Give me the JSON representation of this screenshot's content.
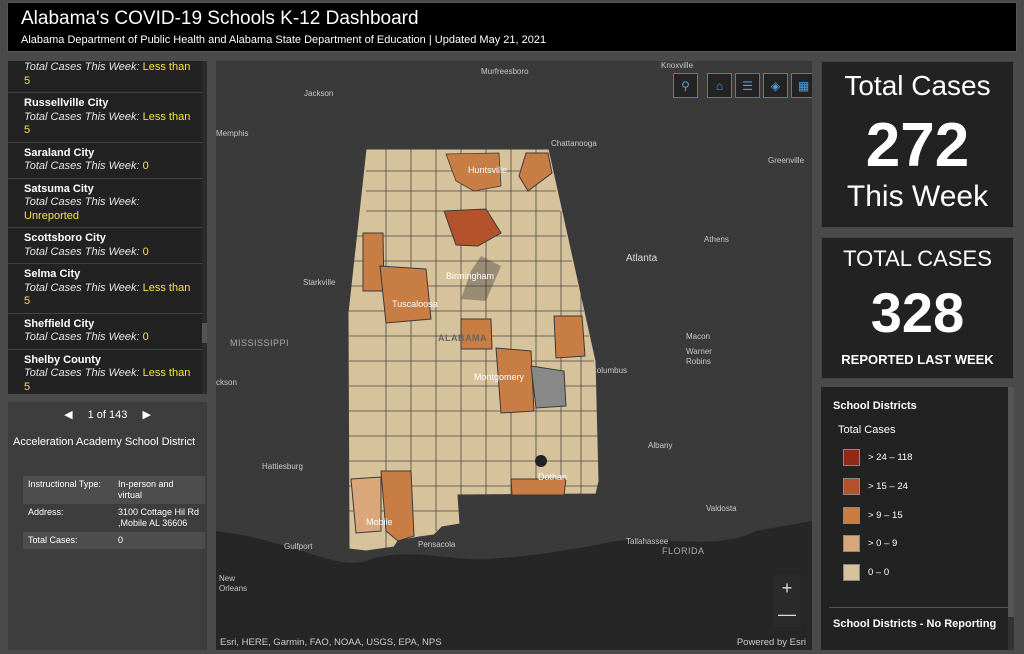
{
  "header": {
    "title": "Alabama's COVID-19 Schools K-12 Dashboard",
    "subtitle": "Alabama Department of Public Health and Alabama State Department of Education | Updated May 21, 2021"
  },
  "list": {
    "label": "Total Cases This Week:",
    "top_partial": {
      "label": "Total Cases This Week:",
      "value": "Less than",
      "value2": "5"
    },
    "items": [
      {
        "name": "Russellville City",
        "value": "Less than",
        "value2": "5"
      },
      {
        "name": "Saraland City",
        "value": "0",
        "value2": ""
      },
      {
        "name": "Satsuma City",
        "value": "Unreported",
        "value2": ""
      },
      {
        "name": "Scottsboro City",
        "value": "0",
        "value2": ""
      },
      {
        "name": "Selma City",
        "value": "Less than",
        "value2": "5"
      },
      {
        "name": "Sheffield City",
        "value": "0",
        "value2": ""
      },
      {
        "name": "Shelby County",
        "value": "Less than",
        "value2": "5"
      }
    ]
  },
  "details": {
    "pager": "1 of 143",
    "prev_icon": "triangle-left-icon",
    "next_icon": "triangle-right-icon",
    "title": "Acceleration Academy School District",
    "rows": [
      {
        "label": "Instructional Type:",
        "value": "In-person and virtual"
      },
      {
        "label": "Address:",
        "value": "3100 Cottage Hil Rd ,Mobile AL 36606"
      },
      {
        "label": "Total Cases:",
        "value": "0"
      }
    ]
  },
  "map": {
    "tools": [
      "search-icon",
      "home-icon",
      "legend-list-icon",
      "layers-icon",
      "qr-grid-icon"
    ],
    "zoom_in": "+",
    "zoom_out": "—",
    "attribution": "Esri, HERE, Garmin, FAO, NOAA, USGS, EPA, NPS",
    "powered": "Powered by Esri",
    "labels": {
      "jackson_n": "Jackson",
      "murfreesboro": "Murfreesboro",
      "knoxville": "Knoxville",
      "memphis": "Memphis",
      "chattanooga": "Chattanooga",
      "greenville": "Greenville",
      "huntsville": "Huntsville",
      "athens": "Athens",
      "atlanta": "Atlanta",
      "starkville": "Starkville",
      "birmingham": "Birmingham",
      "tuscaloosa": "Tuscaloosa",
      "mississippi": "MISSISSIPPI",
      "alabama": "ALABAMA",
      "macon": "Macon",
      "warner_robins": "Warner Robins",
      "jackson_s": "ckson",
      "montgomery": "Montgomery",
      "columbus": "Columbus",
      "albany": "Albany",
      "hattiesburg": "Hattiesburg",
      "dothan": "Dothan",
      "valdosta": "Valdosta",
      "mobile": "Mobile",
      "gulfport": "Gulfport",
      "pensacola": "Pensacola",
      "tallahassee": "Tallahassee",
      "florida": "FLORIDA",
      "new_orleans": "New Orleans"
    }
  },
  "stats": {
    "this_week": {
      "line1": "Total Cases",
      "value": "272",
      "line2": "This Week"
    },
    "last_week": {
      "line1": "TOTAL CASES",
      "value": "328",
      "line2": "REPORTED LAST WEEK"
    }
  },
  "legend": {
    "heading": "School Districts",
    "subheading": "Total Cases",
    "items": [
      {
        "label": "> 24 – 118",
        "color": "#8f2a14"
      },
      {
        "label": "> 15 – 24",
        "color": "#b4532b"
      },
      {
        "label": "> 9 – 15",
        "color": "#c87d45"
      },
      {
        "label": "> 0 – 9",
        "color": "#d9a77a"
      },
      {
        "label": "0 – 0",
        "color": "#d7c39b"
      }
    ],
    "heading2": "School Districts - No Reporting"
  }
}
